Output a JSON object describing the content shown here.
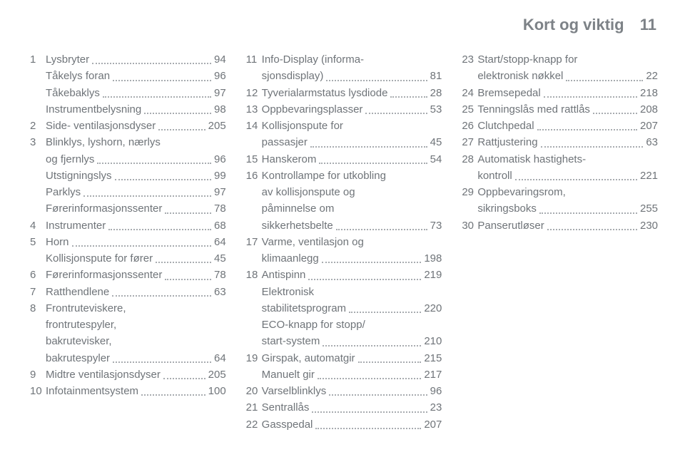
{
  "header": {
    "title": "Kort og viktig",
    "pageno": "11"
  },
  "columns": [
    {
      "items": [
        {
          "n": "1",
          "label": "Lysbryter",
          "page": "94"
        },
        {
          "n": "",
          "label": "Tåkelys foran",
          "page": "96",
          "sub": true
        },
        {
          "n": "",
          "label": "Tåkebaklys",
          "page": "97",
          "sub": true
        },
        {
          "n": "",
          "label": "Instrumentbelysning",
          "page": "98",
          "sub": true
        },
        {
          "n": "2",
          "label": "Side- ventilasjonsdyser",
          "page": "205"
        },
        {
          "n": "3",
          "label": "Blinklys, lyshorn, nærlys\nog fjernlys",
          "page": "96"
        },
        {
          "n": "",
          "label": "Utstigningslys",
          "page": "99",
          "sub": true
        },
        {
          "n": "",
          "label": "Parklys",
          "page": "97",
          "sub": true
        },
        {
          "n": "",
          "label": "Førerinformasjonssenter",
          "page": "78",
          "sub": true
        },
        {
          "n": "4",
          "label": "Instrumenter",
          "page": "68"
        },
        {
          "n": "5",
          "label": "Horn",
          "page": "64"
        },
        {
          "n": "",
          "label": "Kollisjonspute for fører",
          "page": "45",
          "sub": true
        },
        {
          "n": "6",
          "label": "Førerinformasjonssenter",
          "page": "78"
        },
        {
          "n": "7",
          "label": "Ratthendlene",
          "page": "63"
        },
        {
          "n": "8",
          "label": "Frontruteviskere,\nfrontrutespyler,\nbakrutevisker,\nbakrutespyler",
          "page": "64"
        },
        {
          "n": "9",
          "label": "Midtre ventilasjonsdyser",
          "page": "205"
        },
        {
          "n": "10",
          "label": "Infotainmentsystem",
          "page": "100"
        }
      ]
    },
    {
      "items": [
        {
          "n": "11",
          "label": "Info-Display (informa-\nsjonsdisplay)",
          "page": "81"
        },
        {
          "n": "12",
          "label": "Tyverialarmstatus lysdiode",
          "page": "28"
        },
        {
          "n": "13",
          "label": "Oppbevaringsplasser",
          "page": "53"
        },
        {
          "n": "14",
          "label": "Kollisjonspute for\npassasjer",
          "page": "45"
        },
        {
          "n": "15",
          "label": "Hanskerom",
          "page": "54"
        },
        {
          "n": "16",
          "label": "Kontrollampe for utkobling\nav kollisjonspute og\npåminnelse om\nsikkerhetsbelte",
          "page": "73"
        },
        {
          "n": "17",
          "label": "Varme, ventilasjon og\nklimaanlegg",
          "page": "198"
        },
        {
          "n": "18",
          "label": "Antispinn",
          "page": "219"
        },
        {
          "n": "",
          "label": "Elektronisk\nstabilitetsprogram",
          "page": "220",
          "sub": true
        },
        {
          "n": "",
          "label": "ECO-knapp for stopp/\nstart-system",
          "page": "210",
          "sub": true
        },
        {
          "n": "19",
          "label": "Girspak, automatgir",
          "page": "215"
        },
        {
          "n": "",
          "label": "Manuelt gir",
          "page": "217",
          "sub": true
        },
        {
          "n": "20",
          "label": "Varselblinklys",
          "page": "96"
        },
        {
          "n": "21",
          "label": "Sentrallås",
          "page": "23"
        },
        {
          "n": "22",
          "label": "Gasspedal",
          "page": "207"
        }
      ]
    },
    {
      "items": [
        {
          "n": "23",
          "label": "Start/stopp-knapp for\nelektronisk nøkkel",
          "page": "22"
        },
        {
          "n": "24",
          "label": "Bremsepedal",
          "page": "218"
        },
        {
          "n": "25",
          "label": "Tenningslås med rattlås",
          "page": "208"
        },
        {
          "n": "26",
          "label": "Clutchpedal",
          "page": "207"
        },
        {
          "n": "27",
          "label": "Rattjustering",
          "page": "63"
        },
        {
          "n": "28",
          "label": "Automatisk hastighets-\nkontroll",
          "page": "221"
        },
        {
          "n": "29",
          "label": "Oppbevaringsrom,\nsikringsboks",
          "page": "255"
        },
        {
          "n": "30",
          "label": "Panserutløser",
          "page": "230"
        }
      ]
    }
  ]
}
